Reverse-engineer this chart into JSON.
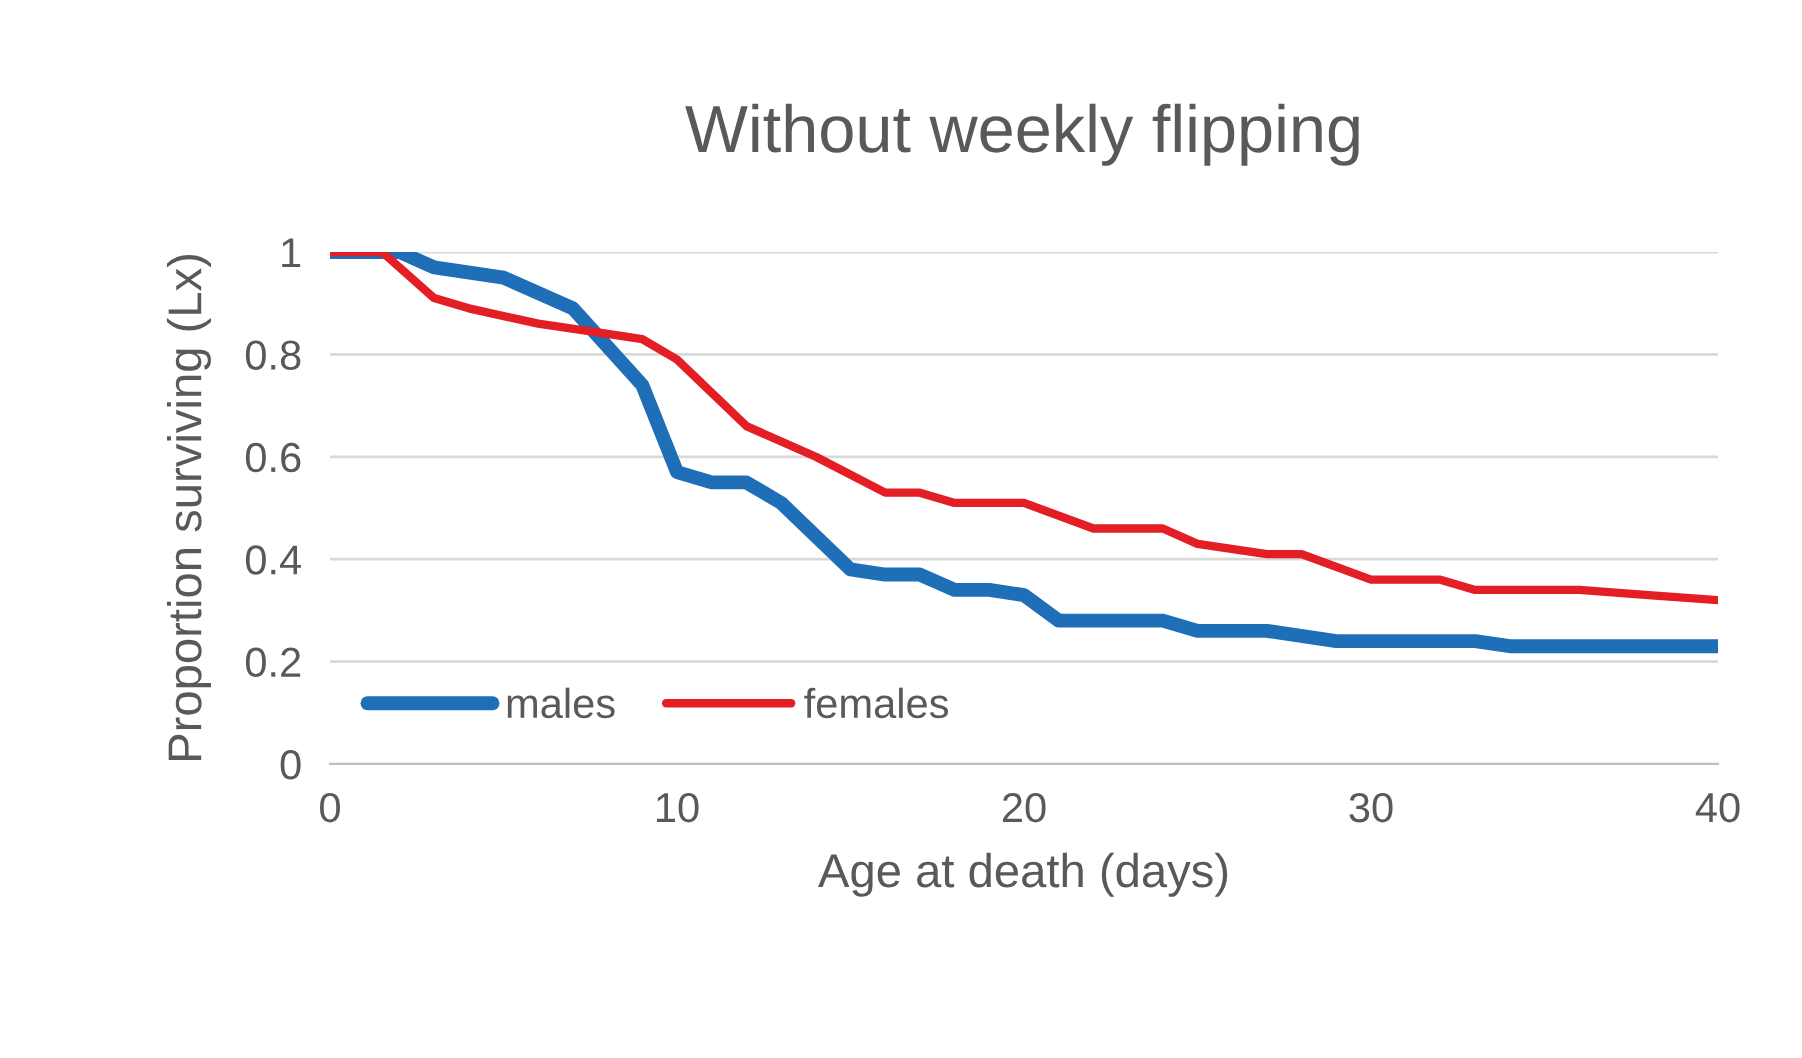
{
  "chart_data": {
    "type": "line",
    "title": "Without weekly flipping",
    "xlabel": "Age at death (days)",
    "ylabel": "Proportion surviving (Lx)",
    "series": [
      {
        "name": "males",
        "color": "#1f6fb8",
        "x": [
          0,
          2,
          3,
          5,
          7,
          9,
          10,
          11,
          12,
          13,
          15,
          16,
          17,
          18,
          19,
          20,
          21,
          24,
          25,
          27,
          29,
          33,
          34,
          40
        ],
        "values": [
          1,
          1,
          0.97,
          0.95,
          0.89,
          0.74,
          0.57,
          0.55,
          0.55,
          0.51,
          0.38,
          0.37,
          0.37,
          0.34,
          0.34,
          0.33,
          0.28,
          0.28,
          0.26,
          0.26,
          0.24,
          0.24,
          0.23,
          0.23
        ]
      },
      {
        "name": "females",
        "color": "#e31e24",
        "x": [
          0,
          1.5,
          3,
          4,
          6,
          8,
          9,
          10,
          12,
          14,
          16,
          17,
          18,
          20,
          22,
          24,
          25,
          27,
          28,
          30,
          32,
          33,
          36,
          38,
          40
        ],
        "values": [
          1,
          1,
          0.91,
          0.89,
          0.86,
          0.84,
          0.83,
          0.79,
          0.66,
          0.6,
          0.53,
          0.53,
          0.51,
          0.51,
          0.46,
          0.46,
          0.43,
          0.41,
          0.41,
          0.36,
          0.36,
          0.34,
          0.34,
          0.33,
          0.32
        ]
      }
    ],
    "xlim": [
      0,
      40
    ],
    "xticks": [
      0,
      10,
      20,
      30,
      40
    ],
    "ylim": [
      0,
      1
    ],
    "yticks": [
      0,
      0.2,
      0.4,
      0.6,
      0.8,
      1
    ],
    "grid": "y",
    "legend": "bottom left"
  }
}
